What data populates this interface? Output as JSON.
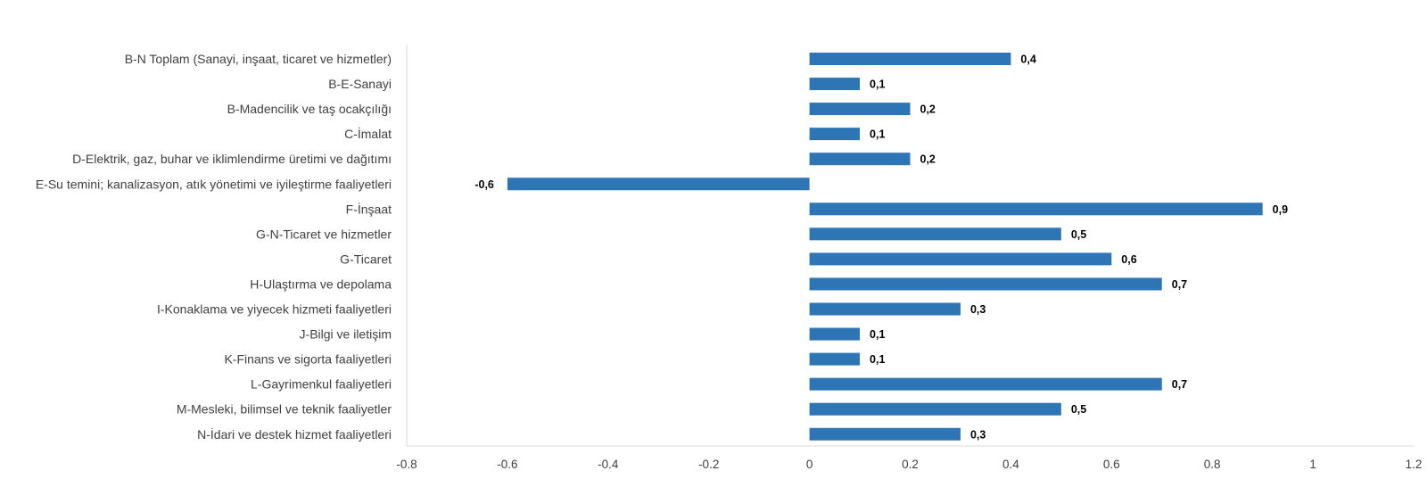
{
  "chart_data": {
    "type": "bar",
    "orientation": "horizontal",
    "title": "",
    "xlabel": "",
    "ylabel": "",
    "xlim": [
      -0.8,
      1.2
    ],
    "x_ticks": [
      -0.8,
      -0.6,
      -0.4,
      -0.2,
      0,
      0.2,
      0.4,
      0.6,
      0.8,
      1,
      1.2
    ],
    "x_tick_labels": [
      "-0.8",
      "-0.6",
      "-0.4",
      "-0.2",
      "0",
      "0.2",
      "0.4",
      "0.6",
      "0.8",
      "1",
      "1.2"
    ],
    "grid": false,
    "legend": "none",
    "bar_color": "#2E75B6",
    "categories": [
      "B-N Toplam (Sanayi, inşaat, ticaret ve hizmetler)",
      "B-E-Sanayi",
      "B-Madencilik ve taş ocakçılığı",
      "C-İmalat",
      "D-Elektrik, gaz, buhar ve iklimlendirme üretimi ve dağıtımı",
      "E-Su temini; kanalizasyon, atık yönetimi ve iyileştirme faaliyetleri",
      "F-İnşaat",
      "G-N-Ticaret ve hizmetler",
      "G-Ticaret",
      "H-Ulaştırma ve depolama",
      "I-Konaklama ve yiyecek hizmeti faaliyetleri",
      "J-Bilgi ve iletişim",
      "K-Finans ve sigorta faaliyetleri",
      "L-Gayrimenkul faaliyetleri",
      "M-Mesleki, bilimsel ve teknik faaliyetler",
      "N-İdari ve destek hizmet faaliyetleri"
    ],
    "values": [
      0.4,
      0.1,
      0.2,
      0.1,
      0.2,
      -0.6,
      0.9,
      0.5,
      0.6,
      0.7,
      0.3,
      0.1,
      0.1,
      0.7,
      0.5,
      0.3
    ],
    "data_labels": [
      "0,4",
      "0,1",
      "0,2",
      "0,1",
      "0,2",
      "-0,6",
      "0,9",
      "0,5",
      "0,6",
      "0,7",
      "0,3",
      "0,1",
      "0,1",
      "0,7",
      "0,5",
      "0,3"
    ]
  }
}
